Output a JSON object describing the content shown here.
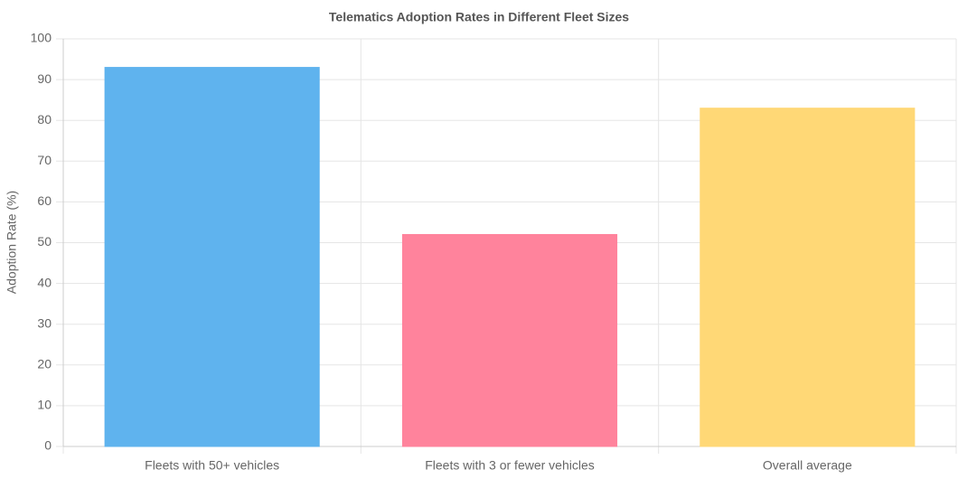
{
  "chart_data": {
    "type": "bar",
    "title": "Telematics Adoption Rates in Different Fleet Sizes",
    "y_label": "Adoption Rate (%)",
    "categories": [
      "Fleets with 50+ vehicles",
      "Fleets with 3 or fewer vehicles",
      "Overall average"
    ],
    "values": [
      93,
      52,
      83
    ],
    "colors": [
      "#5fb3ee",
      "#ff839c",
      "#ffd876"
    ],
    "ylim": [
      0,
      100
    ],
    "yticks": [
      0,
      10,
      20,
      30,
      40,
      50,
      60,
      70,
      80,
      90,
      100
    ],
    "grid": true
  }
}
